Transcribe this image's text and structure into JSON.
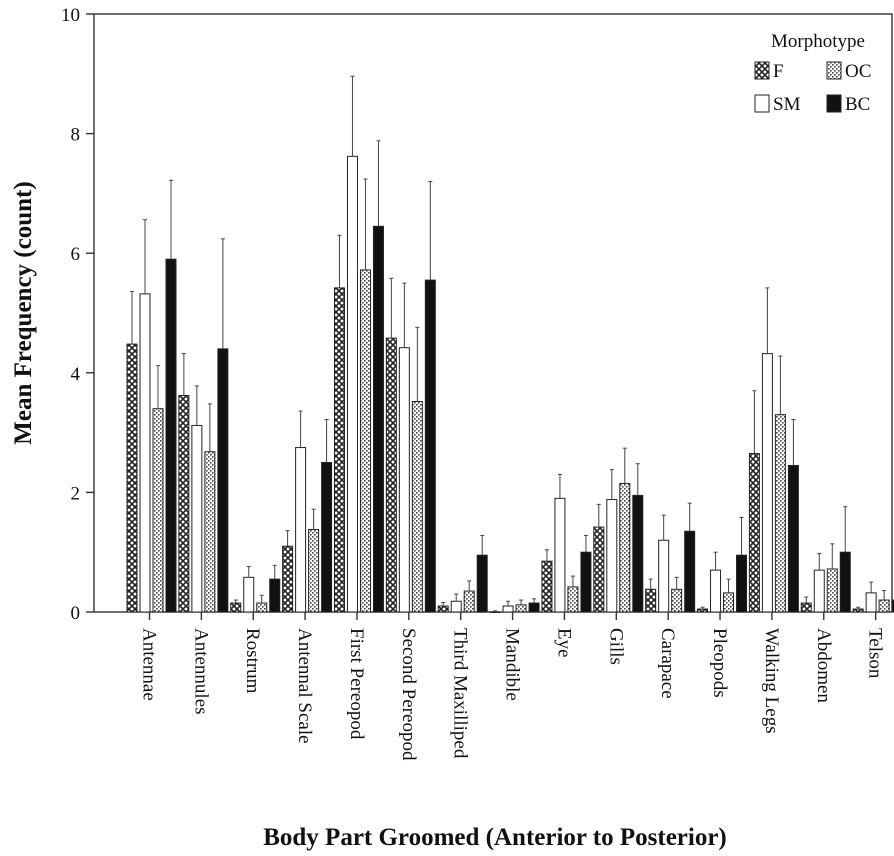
{
  "chart_data": {
    "type": "bar",
    "title": "",
    "xlabel": "Body Part Groomed (Anterior to Posterior)",
    "ylabel": "Mean Frequency (count)",
    "ylim": [
      0,
      10
    ],
    "yticks": [
      0,
      2,
      4,
      6,
      8,
      10
    ],
    "grid": false,
    "legend": {
      "title": "Morphotype",
      "placement": "top-right",
      "columns": 2
    },
    "categories": [
      "Antennae",
      "Antennules",
      "Rostrum",
      "Antennal Scale",
      "First Pereopod",
      "Second Pereopod",
      "Third Maxilliped",
      "Mandible",
      "Eye",
      "Gills",
      "Carapace",
      "Pleopods",
      "Walking Legs",
      "Abdomen",
      "Telson"
    ],
    "series": [
      {
        "name": "F",
        "pattern": "crosshatch",
        "color": "#555555",
        "values": [
          4.48,
          3.62,
          0.15,
          1.1,
          5.42,
          4.58,
          0.1,
          0.0,
          0.85,
          1.42,
          0.38,
          0.05,
          2.65,
          0.15,
          0.05
        ],
        "error_high": [
          5.36,
          4.32,
          0.2,
          1.36,
          6.3,
          5.58,
          0.16,
          0.02,
          1.04,
          1.8,
          0.55,
          0.08,
          3.7,
          0.25,
          0.08
        ]
      },
      {
        "name": "SM",
        "pattern": "white",
        "color": "#ffffff",
        "values": [
          5.32,
          3.12,
          0.58,
          2.75,
          7.62,
          4.42,
          0.18,
          0.1,
          1.9,
          1.88,
          1.2,
          0.7,
          4.32,
          0.7,
          0.32
        ],
        "error_high": [
          6.56,
          3.78,
          0.76,
          3.36,
          8.96,
          5.5,
          0.3,
          0.18,
          2.3,
          2.38,
          1.62,
          1.0,
          5.42,
          0.98,
          0.5
        ]
      },
      {
        "name": "OC",
        "pattern": "dotted",
        "color": "#cccccc",
        "values": [
          3.4,
          2.68,
          0.15,
          1.38,
          5.72,
          3.52,
          0.35,
          0.12,
          0.42,
          2.15,
          0.38,
          0.32,
          3.3,
          0.72,
          0.2
        ],
        "error_high": [
          4.12,
          3.48,
          0.28,
          1.72,
          7.24,
          4.76,
          0.52,
          0.2,
          0.6,
          2.74,
          0.58,
          0.55,
          4.28,
          1.14,
          0.36
        ]
      },
      {
        "name": "BC",
        "pattern": "solid",
        "color": "#111111",
        "values": [
          5.9,
          4.4,
          0.55,
          2.5,
          6.45,
          5.55,
          0.95,
          0.15,
          1.0,
          1.95,
          1.35,
          0.95,
          2.45,
          1.0,
          0.2
        ],
        "error_high": [
          7.22,
          6.24,
          0.78,
          3.22,
          7.88,
          7.2,
          1.28,
          0.22,
          1.28,
          2.48,
          1.82,
          1.58,
          3.22,
          1.76,
          0.3
        ]
      }
    ]
  }
}
